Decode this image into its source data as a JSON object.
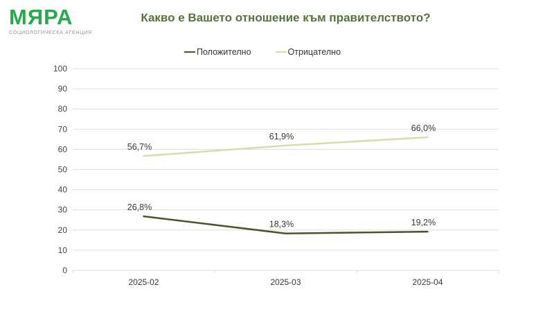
{
  "brand": {
    "logo_text": "МЯРА",
    "logo_subtitle": "СОЦИОЛОГИЧЕСКА АГЕНЦИЯ",
    "logo_color": "#2aa84e",
    "subtitle_color": "#979797"
  },
  "header": {
    "title": "Какво е Вашето отношение към правителството?",
    "title_color": "#57713f"
  },
  "chart_data": {
    "type": "line",
    "title": "Какво е Вашето отношение към правителството?",
    "categories": [
      "2025-02",
      "2025-03",
      "2025-04"
    ],
    "series": [
      {
        "name": "Положително",
        "values": [
          26.8,
          18.3,
          19.2
        ],
        "labels": [
          "26,8%",
          "18,3%",
          "19,2%"
        ],
        "color": "#46552a"
      },
      {
        "name": "Отрицателно",
        "values": [
          56.7,
          61.9,
          66.0
        ],
        "labels": [
          "56,7%",
          "61,9%",
          "66,0%"
        ],
        "color": "#cfe0ac"
      }
    ],
    "xlabel": "",
    "ylabel": "",
    "ylim": [
      0,
      100
    ],
    "ytick_step": 10,
    "grid": true,
    "legend_position": "top",
    "gridline_color": "#dddddd",
    "axis_label_color": "#454545",
    "data_label_color": "#3a3a3a"
  }
}
